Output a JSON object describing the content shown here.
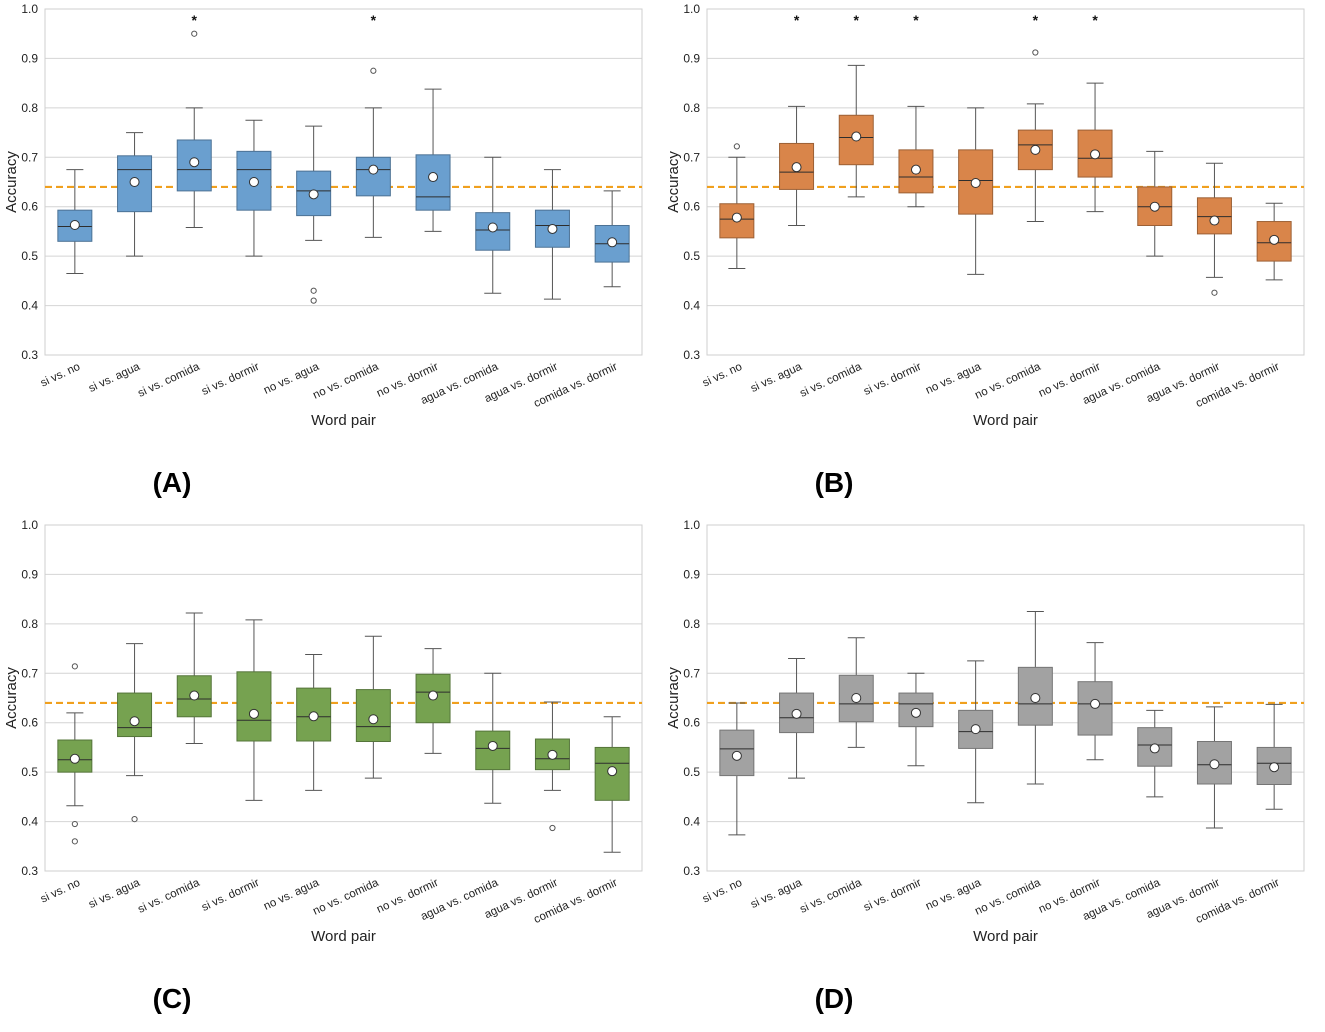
{
  "chart_data": [
    {
      "type": "box",
      "panel_label": "(A)",
      "xlabel": "Word pair",
      "ylabel": "Accuracy",
      "ylim": [
        0.3,
        1.0
      ],
      "yticks": [
        "0.3",
        "0.4",
        "0.5",
        "0.6",
        "0.7",
        "0.8",
        "0.9",
        "1.0"
      ],
      "reference_line": 0.64,
      "box_color": "#6a9fcf",
      "categories": [
        "si vs. no",
        "si vs. agua",
        "si vs. comida",
        "si vs. dormir",
        "no vs. agua",
        "no vs. comida",
        "no vs. dormir",
        "agua vs. comida",
        "agua vs. dormir",
        "comida vs. dormir"
      ],
      "boxes": [
        {
          "whisker_low": 0.465,
          "q1": 0.53,
          "median": 0.56,
          "q3": 0.593,
          "whisker_high": 0.675,
          "mean": 0.563,
          "outliers": [],
          "significant": false
        },
        {
          "whisker_low": 0.5,
          "q1": 0.59,
          "median": 0.675,
          "q3": 0.703,
          "whisker_high": 0.75,
          "mean": 0.65,
          "outliers": [],
          "significant": false
        },
        {
          "whisker_low": 0.558,
          "q1": 0.632,
          "median": 0.675,
          "q3": 0.735,
          "whisker_high": 0.8,
          "mean": 0.69,
          "outliers": [
            0.95
          ],
          "significant": true
        },
        {
          "whisker_low": 0.5,
          "q1": 0.593,
          "median": 0.675,
          "q3": 0.712,
          "whisker_high": 0.775,
          "mean": 0.65,
          "outliers": [],
          "significant": false
        },
        {
          "whisker_low": 0.532,
          "q1": 0.582,
          "median": 0.632,
          "q3": 0.672,
          "whisker_high": 0.763,
          "mean": 0.625,
          "outliers": [
            0.43,
            0.41
          ],
          "significant": false
        },
        {
          "whisker_low": 0.538,
          "q1": 0.622,
          "median": 0.675,
          "q3": 0.7,
          "whisker_high": 0.8,
          "mean": 0.675,
          "outliers": [
            0.875
          ],
          "significant": true
        },
        {
          "whisker_low": 0.55,
          "q1": 0.593,
          "median": 0.62,
          "q3": 0.705,
          "whisker_high": 0.838,
          "mean": 0.66,
          "outliers": [],
          "significant": false
        },
        {
          "whisker_low": 0.425,
          "q1": 0.512,
          "median": 0.553,
          "q3": 0.588,
          "whisker_high": 0.7,
          "mean": 0.558,
          "outliers": [],
          "significant": false
        },
        {
          "whisker_low": 0.413,
          "q1": 0.518,
          "median": 0.562,
          "q3": 0.593,
          "whisker_high": 0.675,
          "mean": 0.555,
          "outliers": [],
          "significant": false
        },
        {
          "whisker_low": 0.438,
          "q1": 0.488,
          "median": 0.525,
          "q3": 0.562,
          "whisker_high": 0.632,
          "mean": 0.528,
          "outliers": [],
          "significant": false
        }
      ]
    },
    {
      "type": "box",
      "panel_label": "(B)",
      "xlabel": "Word pair",
      "ylabel": "Accuracy",
      "ylim": [
        0.3,
        1.0
      ],
      "yticks": [
        "0.3",
        "0.4",
        "0.5",
        "0.6",
        "0.7",
        "0.8",
        "0.9",
        "1.0"
      ],
      "reference_line": 0.64,
      "box_color": "#d9854a",
      "categories": [
        "si vs. no",
        "si vs. agua",
        "si vs. comida",
        "si vs. dormir",
        "no vs. agua",
        "no vs. comida",
        "no vs. dormir",
        "agua vs. comida",
        "agua vs. dormir",
        "comida vs. dormir"
      ],
      "boxes": [
        {
          "whisker_low": 0.475,
          "q1": 0.537,
          "median": 0.575,
          "q3": 0.606,
          "whisker_high": 0.7,
          "mean": 0.578,
          "outliers": [
            0.722
          ],
          "significant": false
        },
        {
          "whisker_low": 0.562,
          "q1": 0.635,
          "median": 0.67,
          "q3": 0.728,
          "whisker_high": 0.803,
          "mean": 0.68,
          "outliers": [],
          "significant": true
        },
        {
          "whisker_low": 0.62,
          "q1": 0.685,
          "median": 0.74,
          "q3": 0.785,
          "whisker_high": 0.886,
          "mean": 0.742,
          "outliers": [],
          "significant": true
        },
        {
          "whisker_low": 0.6,
          "q1": 0.628,
          "median": 0.66,
          "q3": 0.715,
          "whisker_high": 0.803,
          "mean": 0.675,
          "outliers": [],
          "significant": true
        },
        {
          "whisker_low": 0.463,
          "q1": 0.585,
          "median": 0.653,
          "q3": 0.715,
          "whisker_high": 0.8,
          "mean": 0.648,
          "outliers": [],
          "significant": false
        },
        {
          "whisker_low": 0.57,
          "q1": 0.675,
          "median": 0.725,
          "q3": 0.755,
          "whisker_high": 0.808,
          "mean": 0.715,
          "outliers": [
            0.912
          ],
          "significant": true
        },
        {
          "whisker_low": 0.59,
          "q1": 0.66,
          "median": 0.698,
          "q3": 0.755,
          "whisker_high": 0.85,
          "mean": 0.706,
          "outliers": [],
          "significant": true
        },
        {
          "whisker_low": 0.5,
          "q1": 0.562,
          "median": 0.6,
          "q3": 0.64,
          "whisker_high": 0.712,
          "mean": 0.6,
          "outliers": [],
          "significant": false
        },
        {
          "whisker_low": 0.457,
          "q1": 0.545,
          "median": 0.58,
          "q3": 0.618,
          "whisker_high": 0.688,
          "mean": 0.572,
          "outliers": [
            0.426
          ],
          "significant": false
        },
        {
          "whisker_low": 0.452,
          "q1": 0.49,
          "median": 0.527,
          "q3": 0.57,
          "whisker_high": 0.607,
          "mean": 0.533,
          "outliers": [],
          "significant": false
        }
      ]
    },
    {
      "type": "box",
      "panel_label": "(C)",
      "xlabel": "Word pair",
      "ylabel": "Accuracy",
      "ylim": [
        0.3,
        1.0
      ],
      "yticks": [
        "0.3",
        "0.4",
        "0.5",
        "0.6",
        "0.7",
        "0.8",
        "0.9",
        "1.0"
      ],
      "reference_line": 0.64,
      "box_color": "#76a250",
      "categories": [
        "si vs. no",
        "si vs. agua",
        "si vs. comida",
        "si vs. dormir",
        "no vs. agua",
        "no vs. comida",
        "no vs. dormir",
        "agua vs. comida",
        "agua vs. dormir",
        "comida vs. dormir"
      ],
      "boxes": [
        {
          "whisker_low": 0.432,
          "q1": 0.5,
          "median": 0.525,
          "q3": 0.565,
          "whisker_high": 0.62,
          "mean": 0.527,
          "outliers": [
            0.714,
            0.395,
            0.36
          ],
          "significant": false
        },
        {
          "whisker_low": 0.493,
          "q1": 0.572,
          "median": 0.59,
          "q3": 0.66,
          "whisker_high": 0.76,
          "mean": 0.603,
          "outliers": [
            0.405
          ],
          "significant": false
        },
        {
          "whisker_low": 0.558,
          "q1": 0.612,
          "median": 0.648,
          "q3": 0.695,
          "whisker_high": 0.822,
          "mean": 0.655,
          "outliers": [],
          "significant": false
        },
        {
          "whisker_low": 0.443,
          "q1": 0.563,
          "median": 0.605,
          "q3": 0.703,
          "whisker_high": 0.808,
          "mean": 0.618,
          "outliers": [],
          "significant": false
        },
        {
          "whisker_low": 0.463,
          "q1": 0.563,
          "median": 0.612,
          "q3": 0.67,
          "whisker_high": 0.738,
          "mean": 0.613,
          "outliers": [],
          "significant": false
        },
        {
          "whisker_low": 0.488,
          "q1": 0.562,
          "median": 0.592,
          "q3": 0.667,
          "whisker_high": 0.775,
          "mean": 0.607,
          "outliers": [],
          "significant": false
        },
        {
          "whisker_low": 0.538,
          "q1": 0.6,
          "median": 0.662,
          "q3": 0.698,
          "whisker_high": 0.75,
          "mean": 0.655,
          "outliers": [],
          "significant": false
        },
        {
          "whisker_low": 0.437,
          "q1": 0.505,
          "median": 0.548,
          "q3": 0.583,
          "whisker_high": 0.7,
          "mean": 0.553,
          "outliers": [],
          "significant": false
        },
        {
          "whisker_low": 0.463,
          "q1": 0.505,
          "median": 0.527,
          "q3": 0.567,
          "whisker_high": 0.642,
          "mean": 0.535,
          "outliers": [
            0.387
          ],
          "significant": false
        },
        {
          "whisker_low": 0.338,
          "q1": 0.443,
          "median": 0.518,
          "q3": 0.55,
          "whisker_high": 0.612,
          "mean": 0.502,
          "outliers": [],
          "significant": false
        }
      ]
    },
    {
      "type": "box",
      "panel_label": "(D)",
      "xlabel": "Word pair",
      "ylabel": "Accuracy",
      "ylim": [
        0.3,
        1.0
      ],
      "yticks": [
        "0.3",
        "0.4",
        "0.5",
        "0.6",
        "0.7",
        "0.8",
        "0.9",
        "1.0"
      ],
      "reference_line": 0.64,
      "box_color": "#a2a2a2",
      "categories": [
        "si vs. no",
        "si vs. agua",
        "si vs. comida",
        "si vs. dormir",
        "no vs. agua",
        "no vs. comida",
        "no vs. dormir",
        "agua vs. comida",
        "agua vs. dormir",
        "comida vs. dormir"
      ],
      "boxes": [
        {
          "whisker_low": 0.373,
          "q1": 0.493,
          "median": 0.547,
          "q3": 0.585,
          "whisker_high": 0.64,
          "mean": 0.533,
          "outliers": [],
          "significant": false
        },
        {
          "whisker_low": 0.488,
          "q1": 0.58,
          "median": 0.61,
          "q3": 0.66,
          "whisker_high": 0.73,
          "mean": 0.618,
          "outliers": [],
          "significant": false
        },
        {
          "whisker_low": 0.55,
          "q1": 0.602,
          "median": 0.638,
          "q3": 0.696,
          "whisker_high": 0.772,
          "mean": 0.65,
          "outliers": [],
          "significant": false
        },
        {
          "whisker_low": 0.513,
          "q1": 0.592,
          "median": 0.638,
          "q3": 0.66,
          "whisker_high": 0.7,
          "mean": 0.62,
          "outliers": [],
          "significant": false
        },
        {
          "whisker_low": 0.438,
          "q1": 0.548,
          "median": 0.582,
          "q3": 0.625,
          "whisker_high": 0.725,
          "mean": 0.587,
          "outliers": [],
          "significant": false
        },
        {
          "whisker_low": 0.476,
          "q1": 0.595,
          "median": 0.638,
          "q3": 0.712,
          "whisker_high": 0.825,
          "mean": 0.65,
          "outliers": [],
          "significant": false
        },
        {
          "whisker_low": 0.525,
          "q1": 0.575,
          "median": 0.638,
          "q3": 0.683,
          "whisker_high": 0.762,
          "mean": 0.638,
          "outliers": [],
          "significant": false
        },
        {
          "whisker_low": 0.45,
          "q1": 0.512,
          "median": 0.555,
          "q3": 0.59,
          "whisker_high": 0.625,
          "mean": 0.548,
          "outliers": [],
          "significant": false
        },
        {
          "whisker_low": 0.387,
          "q1": 0.476,
          "median": 0.515,
          "q3": 0.562,
          "whisker_high": 0.632,
          "mean": 0.516,
          "outliers": [],
          "significant": false
        },
        {
          "whisker_low": 0.425,
          "q1": 0.475,
          "median": 0.518,
          "q3": 0.55,
          "whisker_high": 0.637,
          "mean": 0.51,
          "outliers": [],
          "significant": false
        }
      ]
    }
  ],
  "colors": {
    "grid": "#d4d4d4",
    "frame": "#cfcfcf",
    "reference_line": "#f0a01e",
    "whisker": "#555555",
    "median": "#2d2d2d",
    "outlier_stroke": "#555555",
    "mean_fill": "#ffffff",
    "text": "#222222"
  },
  "significance_marker": "*"
}
